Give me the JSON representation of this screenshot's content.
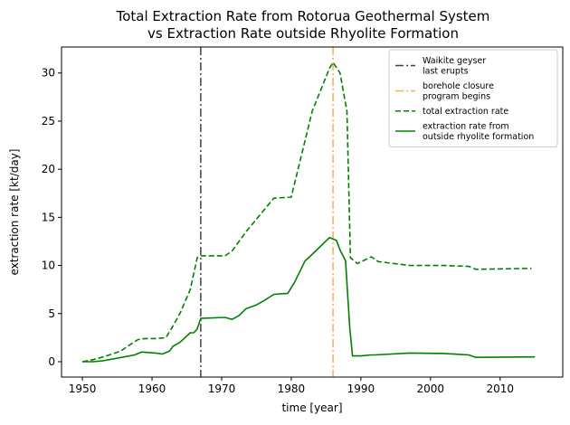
{
  "chart_data": {
    "type": "line",
    "title_line1": "Total Extraction Rate from Rotorua Geothermal System",
    "title_line2": "vs Extraction Rate outside Rhyolite Formation",
    "xlabel": "time [year]",
    "ylabel": "extraction rate [kt/day]",
    "xlim": [
      1947,
      2019
    ],
    "ylim": [
      -1.6,
      32.7
    ],
    "xticks": [
      1950,
      1960,
      1970,
      1980,
      1990,
      2000,
      2010
    ],
    "yticks": [
      0,
      5,
      10,
      15,
      20,
      25,
      30
    ],
    "grid": false,
    "legend_position": "top-right",
    "vlines": [
      {
        "name": "vline-waikite",
        "x": 1967,
        "color": "#404040",
        "style": "dashdot",
        "legend": [
          "Waikite geyser",
          "last erupts"
        ]
      },
      {
        "name": "vline-borehole",
        "x": 1986,
        "color": "#f5b04c",
        "style": "dashdot",
        "legend": [
          "borehole closure",
          "program begins"
        ]
      }
    ],
    "series": [
      {
        "name": "total extraction rate",
        "legend": [
          "total extraction rate"
        ],
        "color": "#008000",
        "style": "dashed",
        "x": [
          1950,
          1951.5,
          1953,
          1955.5,
          1956.5,
          1958,
          1959,
          1960.5,
          1962,
          1963,
          1964,
          1965.5,
          1966.5,
          1967,
          1970.5,
          1971.5,
          1973.5,
          1977.5,
          1980,
          1983,
          1985.5,
          1986,
          1987,
          1988,
          1988.5,
          1989.5,
          1991.5,
          1992.5,
          1997,
          2002,
          2005.5,
          2006.5,
          2014.5
        ],
        "y": [
          0,
          0.2,
          0.5,
          1.1,
          1.6,
          2.3,
          2.4,
          2.4,
          2.5,
          3.7,
          5.0,
          7.5,
          10.8,
          11.0,
          11.0,
          11.5,
          13.5,
          17.0,
          17.1,
          26.0,
          30.5,
          31.1,
          30.0,
          26.0,
          10.8,
          10.2,
          10.9,
          10.4,
          10.0,
          10.0,
          9.9,
          9.6,
          9.7
        ]
      },
      {
        "name": "extraction rate from outside rhyolite formation",
        "legend": [
          "extraction rate from",
          "outside rhyolite formation"
        ],
        "color": "#008000",
        "style": "solid",
        "x": [
          1950,
          1951.5,
          1953,
          1954.5,
          1956,
          1957.5,
          1958.5,
          1960.5,
          1961.5,
          1962.5,
          1963,
          1964,
          1965.5,
          1966,
          1966.5,
          1967,
          1970.5,
          1971.5,
          1972.5,
          1973.5,
          1975,
          1976,
          1977.5,
          1979.5,
          1980.5,
          1982,
          1982.5,
          1985.5,
          1986.5,
          1987,
          1987.8,
          1988.4,
          1988.8,
          1990,
          1991.5,
          1992,
          1997,
          2002,
          2005.5,
          2006.5,
          2015
        ],
        "y": [
          0,
          0,
          0.1,
          0.3,
          0.5,
          0.7,
          1.0,
          0.9,
          0.8,
          1.1,
          1.6,
          2.0,
          3.0,
          3.0,
          3.4,
          4.5,
          4.6,
          4.4,
          4.8,
          5.5,
          5.9,
          6.3,
          7.0,
          7.1,
          8.3,
          10.5,
          10.8,
          12.9,
          12.6,
          11.6,
          10.5,
          3.5,
          0.6,
          0.6,
          0.7,
          0.7,
          0.9,
          0.85,
          0.7,
          0.45,
          0.5
        ]
      }
    ]
  }
}
